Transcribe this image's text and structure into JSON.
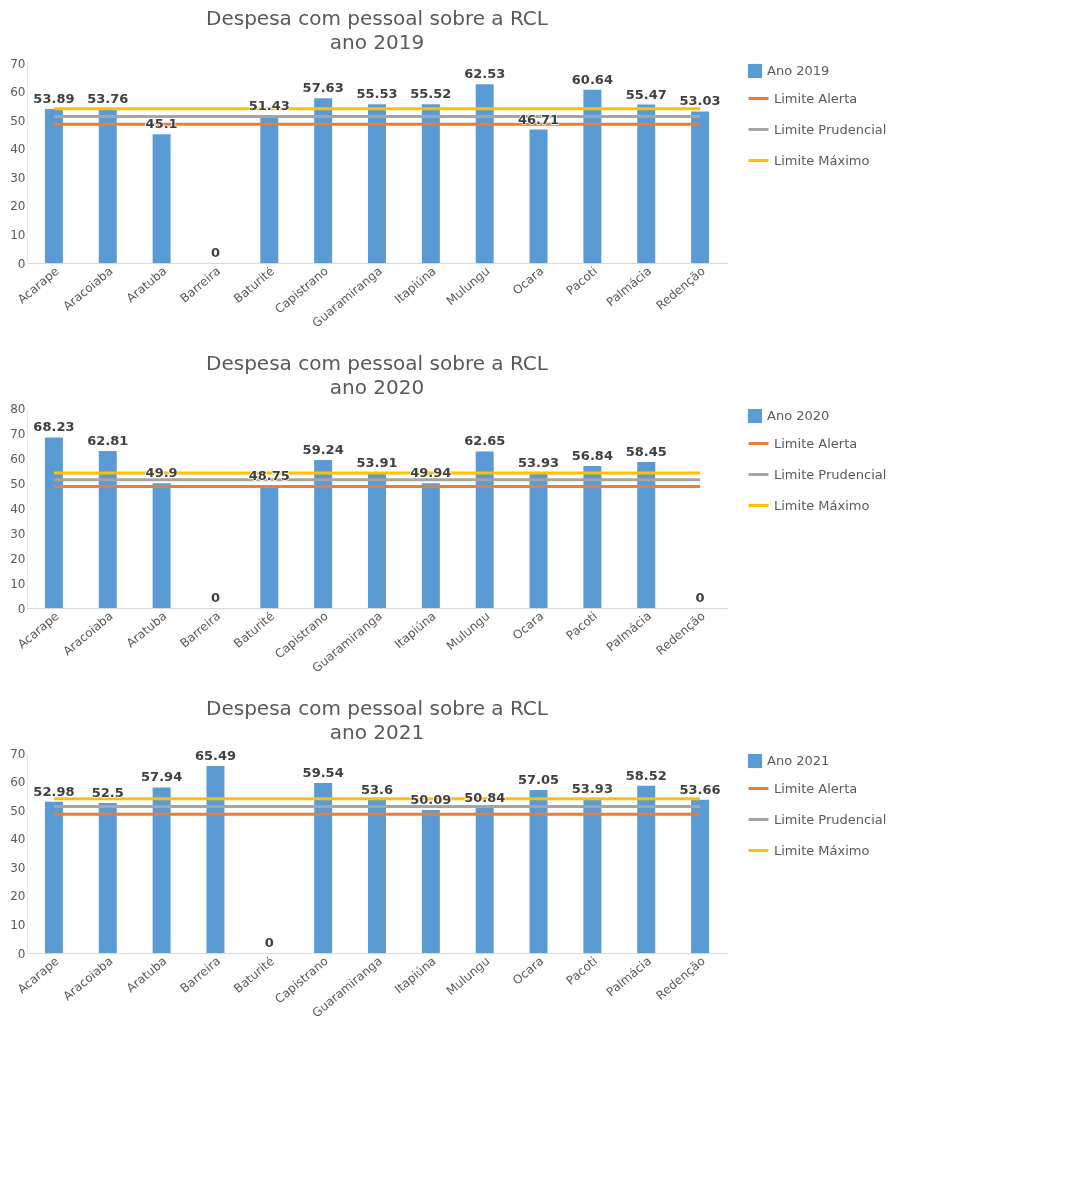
{
  "chart_data": [
    {
      "type": "bar",
      "title": "Despesa com pessoal sobre a RCL",
      "subtitle": "ano 2019",
      "categories": [
        "Acarape",
        "Aracoiaba",
        "Aratuba",
        "Barreira",
        "Baturité",
        "Capistrano",
        "Guaramiranga",
        "Itapiúna",
        "Mulungu",
        "Ocara",
        "Pacoti",
        "Palmácia",
        "Redenção"
      ],
      "ylim": [
        0,
        70
      ],
      "yticks": [
        0,
        10,
        20,
        30,
        40,
        50,
        60,
        70
      ],
      "legend": "right",
      "series": [
        {
          "name": "Ano 2019",
          "type": "bar",
          "color": "#5b9bd5",
          "values": [
            53.89,
            53.76,
            45.1,
            0,
            51.43,
            57.63,
            55.53,
            55.52,
            62.53,
            46.71,
            60.64,
            55.47,
            53.03
          ],
          "value_labels": [
            "53.89",
            "53.76",
            "45.1",
            "0",
            "51.43",
            "57.63",
            "55.53",
            "55.52",
            "62.53",
            "46.71",
            "60.64",
            "55.47",
            "53.03"
          ]
        },
        {
          "name": "Limite Alerta",
          "type": "line",
          "color": "#ed7d31",
          "values": [
            48.6,
            48.6,
            48.6,
            48.6,
            48.6,
            48.6,
            48.6,
            48.6,
            48.6,
            48.6,
            48.6,
            48.6,
            48.6
          ]
        },
        {
          "name": "Limite Prudencial",
          "type": "line",
          "color": "#a5a5a5",
          "values": [
            51.3,
            51.3,
            51.3,
            51.3,
            51.3,
            51.3,
            51.3,
            51.3,
            51.3,
            51.3,
            51.3,
            51.3,
            51.3
          ]
        },
        {
          "name": "Limite Máximo",
          "type": "line",
          "color": "#ffc000",
          "values": [
            54,
            54,
            54,
            54,
            54,
            54,
            54,
            54,
            54,
            54,
            54,
            54,
            54
          ]
        }
      ]
    },
    {
      "type": "bar",
      "title": "Despesa com pessoal sobre a RCL",
      "subtitle": "ano 2020",
      "categories": [
        "Acarape",
        "Aracoiaba",
        "Aratuba",
        "Barreira",
        "Baturité",
        "Capistrano",
        "Guaramiranga",
        "Itapiúna",
        "Mulungu",
        "Ocara",
        "Pacoti",
        "Palmácia",
        "Redenção"
      ],
      "ylim": [
        0,
        80
      ],
      "yticks": [
        0,
        10,
        20,
        30,
        40,
        50,
        60,
        70,
        80
      ],
      "legend": "right",
      "series": [
        {
          "name": "Ano 2020",
          "type": "bar",
          "color": "#5b9bd5",
          "values": [
            68.23,
            62.81,
            49.9,
            0,
            48.75,
            59.24,
            53.91,
            49.94,
            62.65,
            53.93,
            56.84,
            58.45,
            0
          ],
          "value_labels": [
            "68.23",
            "62.81",
            "49.9",
            "0",
            "48.75",
            "59.24",
            "53.91",
            "49.94",
            "62.65",
            "53.93",
            "56.84",
            "58.45",
            "0"
          ]
        },
        {
          "name": "Limite Alerta",
          "type": "line",
          "color": "#ed7d31",
          "values": [
            48.6,
            48.6,
            48.6,
            48.6,
            48.6,
            48.6,
            48.6,
            48.6,
            48.6,
            48.6,
            48.6,
            48.6,
            48.6
          ]
        },
        {
          "name": "Limite Prudencial",
          "type": "line",
          "color": "#a5a5a5",
          "values": [
            51.3,
            51.3,
            51.3,
            51.3,
            51.3,
            51.3,
            51.3,
            51.3,
            51.3,
            51.3,
            51.3,
            51.3,
            51.3
          ]
        },
        {
          "name": "Limite Máximo",
          "type": "line",
          "color": "#ffc000",
          "values": [
            54,
            54,
            54,
            54,
            54,
            54,
            54,
            54,
            54,
            54,
            54,
            54,
            54
          ]
        }
      ]
    },
    {
      "type": "bar",
      "title": "Despesa com pessoal sobre a RCL",
      "subtitle": "ano 2021",
      "categories": [
        "Acarape",
        "Aracoiaba",
        "Aratuba",
        "Barreira",
        "Baturité",
        "Capistrano",
        "Guaramiranga",
        "Itapiúna",
        "Mulungu",
        "Ocara",
        "Pacoti",
        "Palmácia",
        "Redenção"
      ],
      "ylim": [
        0,
        70
      ],
      "yticks": [
        0,
        10,
        20,
        30,
        40,
        50,
        60,
        70
      ],
      "legend": "right",
      "series": [
        {
          "name": "Ano 2021",
          "type": "bar",
          "color": "#5b9bd5",
          "values": [
            52.98,
            52.5,
            57.94,
            65.49,
            0,
            59.54,
            53.6,
            50.09,
            50.84,
            57.05,
            53.93,
            58.52,
            53.66
          ],
          "value_labels": [
            "52.98",
            "52.5",
            "57.94",
            "65.49",
            "0",
            "59.54",
            "53.6",
            "50.09",
            "50.84",
            "57.05",
            "53.93",
            "58.52",
            "53.66"
          ]
        },
        {
          "name": "Limite Alerta",
          "type": "line",
          "color": "#ed7d31",
          "values": [
            48.6,
            48.6,
            48.6,
            48.6,
            48.6,
            48.6,
            48.6,
            48.6,
            48.6,
            48.6,
            48.6,
            48.6,
            48.6
          ]
        },
        {
          "name": "Limite Prudencial",
          "type": "line",
          "color": "#a5a5a5",
          "values": [
            51.3,
            51.3,
            51.3,
            51.3,
            51.3,
            51.3,
            51.3,
            51.3,
            51.3,
            51.3,
            51.3,
            51.3,
            51.3
          ]
        },
        {
          "name": "Limite Máximo",
          "type": "line",
          "color": "#ffc000",
          "values": [
            54,
            54,
            54,
            54,
            54,
            54,
            54,
            54,
            54,
            54,
            54,
            54,
            54
          ]
        }
      ]
    }
  ]
}
